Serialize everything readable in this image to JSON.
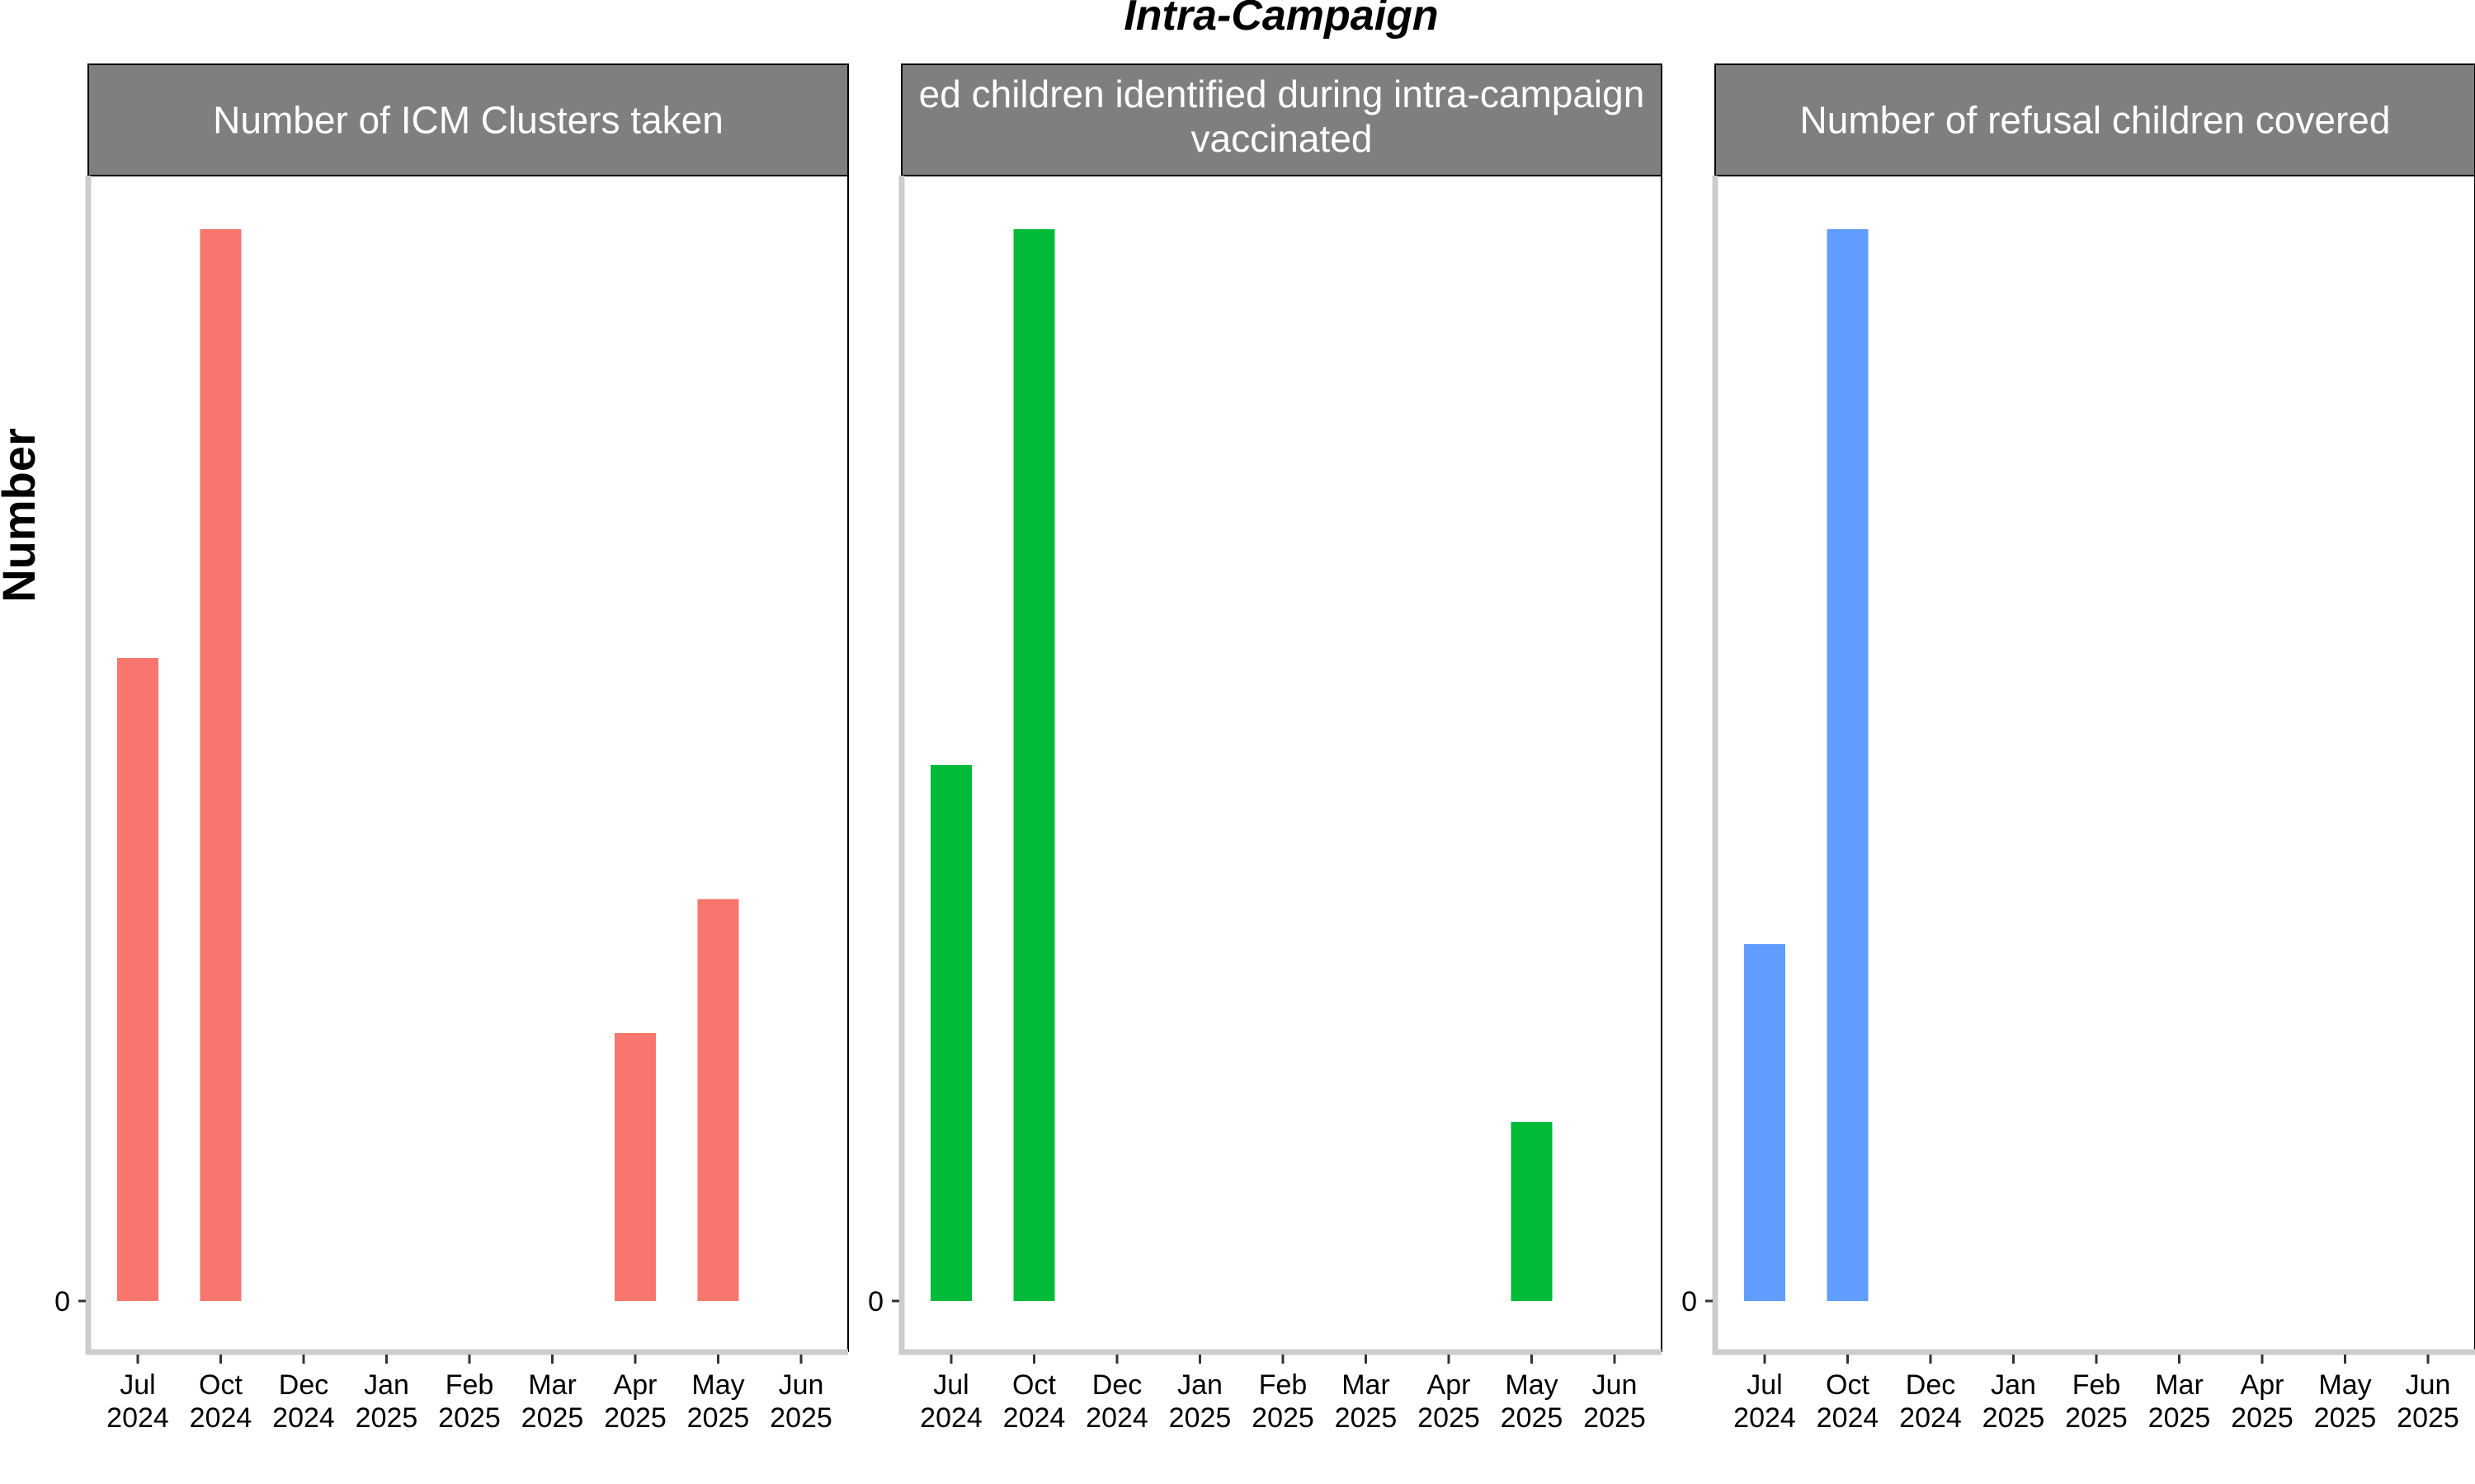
{
  "chart_data": {
    "type": "bar",
    "title": "Intra-Campaign",
    "ylabel": "Number",
    "x_tick_labels": [
      [
        "Jul",
        "2024"
      ],
      [
        "Oct",
        "2024"
      ],
      [
        "Dec",
        "2024"
      ],
      [
        "Jan",
        "2025"
      ],
      [
        "Feb",
        "2025"
      ],
      [
        "Mar",
        "2025"
      ],
      [
        "Apr",
        "2025"
      ],
      [
        "May",
        "2025"
      ],
      [
        "Jun",
        "2025"
      ]
    ],
    "y_tick_label": "0",
    "facets": [
      {
        "title_lines": [
          "Number of ICM Clusters taken"
        ],
        "color": "#F8766D",
        "bars": [
          {
            "x": "2024-07",
            "value": 0.6
          },
          {
            "x": "2024-10",
            "value": 1.0
          },
          {
            "x": "2025-04",
            "value": 0.25
          },
          {
            "x": "2025-05",
            "value": 0.375
          }
        ]
      },
      {
        "title_lines": [
          "ed children identified during intra-campaign",
          "vaccinated"
        ],
        "color": "#00BA38",
        "bars": [
          {
            "x": "2024-07",
            "value": 0.5
          },
          {
            "x": "2024-10",
            "value": 1.0
          },
          {
            "x": "2025-05",
            "value": 0.167
          }
        ]
      },
      {
        "title_lines": [
          "Number of refusal children covered"
        ],
        "color": "#619CFF",
        "bars": [
          {
            "x": "2024-07",
            "value": 0.333
          },
          {
            "x": "2024-10",
            "value": 1.0
          }
        ]
      }
    ]
  }
}
